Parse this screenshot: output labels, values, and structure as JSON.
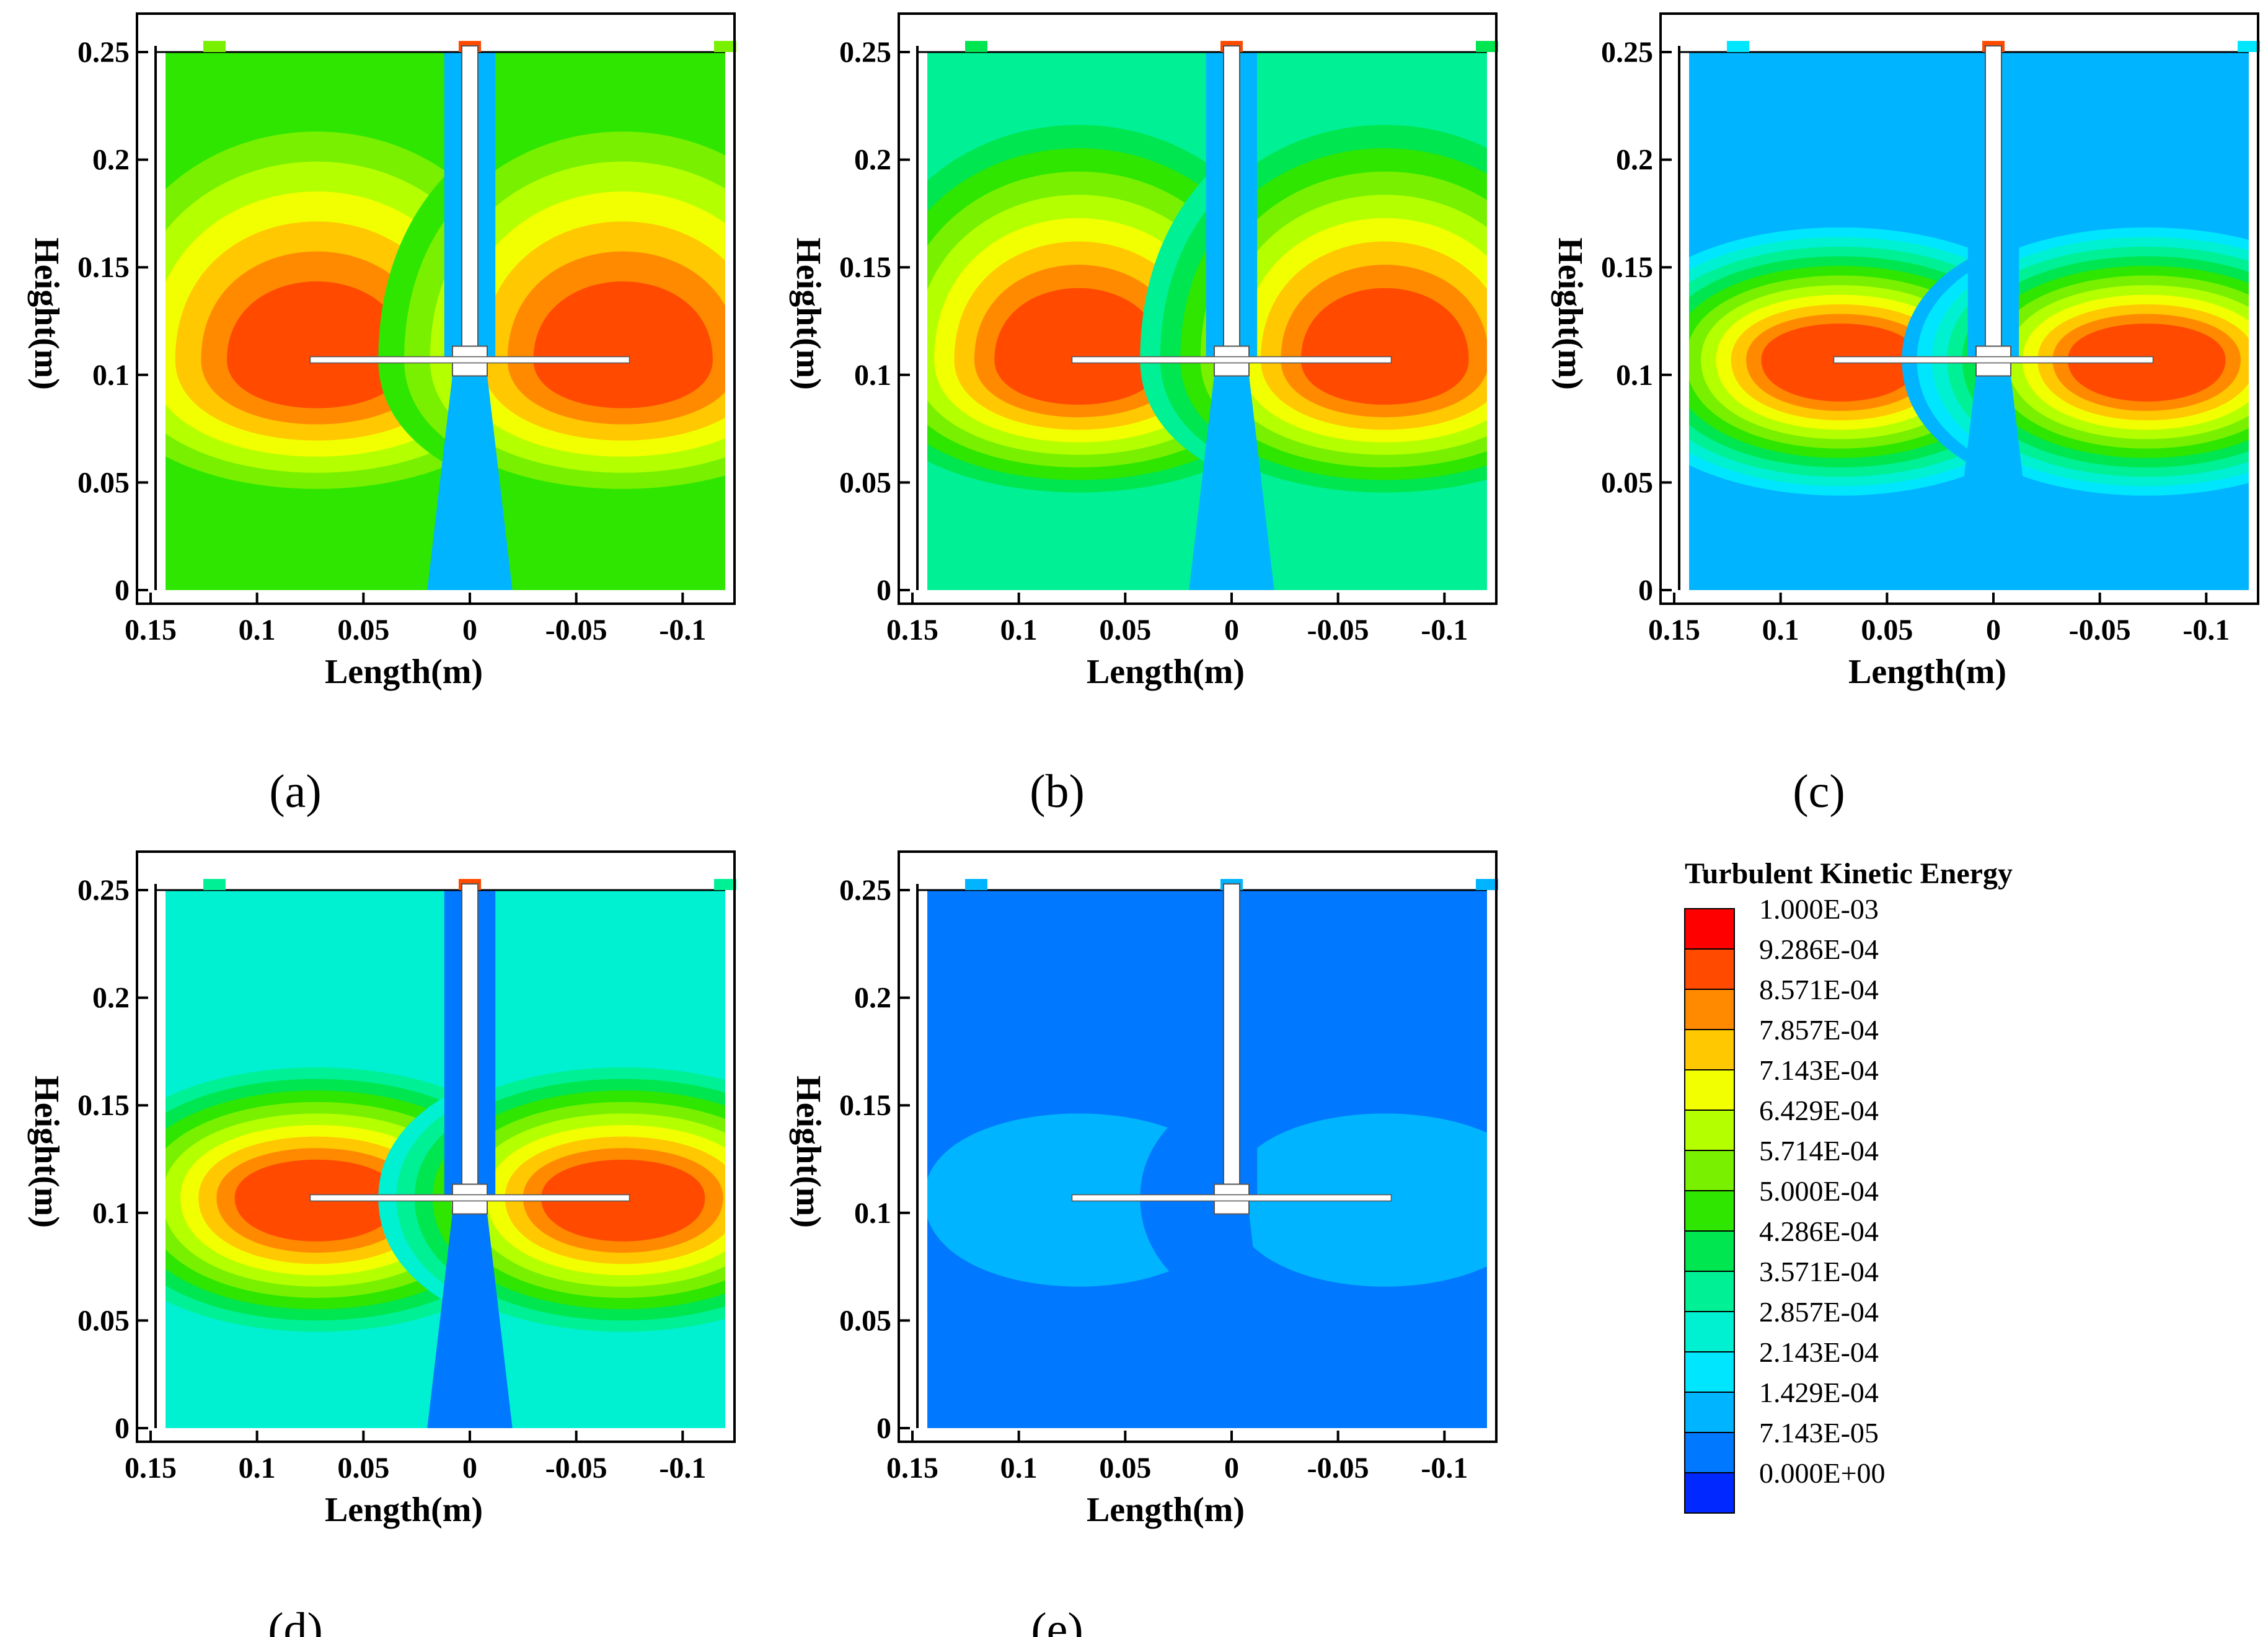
{
  "chart_data": {
    "type": "heatmap",
    "description_labels": {
      "xlabel": "Length(m)",
      "ylabel": "Height(m)"
    },
    "xlim": [
      0.15,
      -0.12
    ],
    "ylim": [
      0,
      0.25
    ],
    "x_ticks": [
      "0.15",
      "0.1",
      "0.05",
      "0",
      "-0.05",
      "-0.1"
    ],
    "x_tick_values": [
      0.15,
      0.1,
      0.05,
      0,
      -0.05,
      -0.1
    ],
    "y_ticks": [
      "0",
      "0.05",
      "0.1",
      "0.15",
      "0.2",
      "0.25"
    ],
    "y_tick_values": [
      0,
      0.05,
      0.1,
      0.15,
      0.2,
      0.25
    ],
    "impeller": {
      "shaft_x": 0,
      "disk_height": 0.107,
      "blade_tip_x": 0.075
    },
    "panels": [
      {
        "label": "(a)",
        "background_level": 7,
        "blob_level": 13,
        "blob_outer_level": 11,
        "shaft_level": 2
      },
      {
        "label": "(b)",
        "background_level": 5,
        "blob_level": 13,
        "blob_outer_level": 9,
        "shaft_level": 2
      },
      {
        "label": "(c)",
        "background_level": 2,
        "blob_level": 13,
        "blob_outer_level": 6,
        "shaft_level": 2
      },
      {
        "label": "(d)",
        "background_level": 4,
        "blob_level": 13,
        "blob_outer_level": 6,
        "shaft_level": 1
      },
      {
        "label": "(e)",
        "background_level": 1,
        "blob_level": 2,
        "blob_outer_level": 2,
        "shaft_level": 1
      }
    ],
    "legend": {
      "title": "Turbulent Kinetic Energy",
      "entries": [
        {
          "label": "1.000E-03",
          "color": "#ff0000"
        },
        {
          "label": "9.286E-04",
          "color": "#ff4a00"
        },
        {
          "label": "8.571E-04",
          "color": "#ff8a00"
        },
        {
          "label": "7.857E-04",
          "color": "#ffc800"
        },
        {
          "label": "7.143E-04",
          "color": "#f2ff00"
        },
        {
          "label": "6.429E-04",
          "color": "#b4ff00"
        },
        {
          "label": "5.714E-04",
          "color": "#78f000"
        },
        {
          "label": "5.000E-04",
          "color": "#2ee600"
        },
        {
          "label": "4.286E-04",
          "color": "#00e650"
        },
        {
          "label": "3.571E-04",
          "color": "#00f096"
        },
        {
          "label": "2.857E-04",
          "color": "#00f0d2"
        },
        {
          "label": "2.143E-04",
          "color": "#00e6ff"
        },
        {
          "label": "1.429E-04",
          "color": "#00b4ff"
        },
        {
          "label": "7.143E-05",
          "color": "#0078ff"
        },
        {
          "label": "0.000E+00",
          "color": "#0028ff"
        }
      ]
    }
  }
}
